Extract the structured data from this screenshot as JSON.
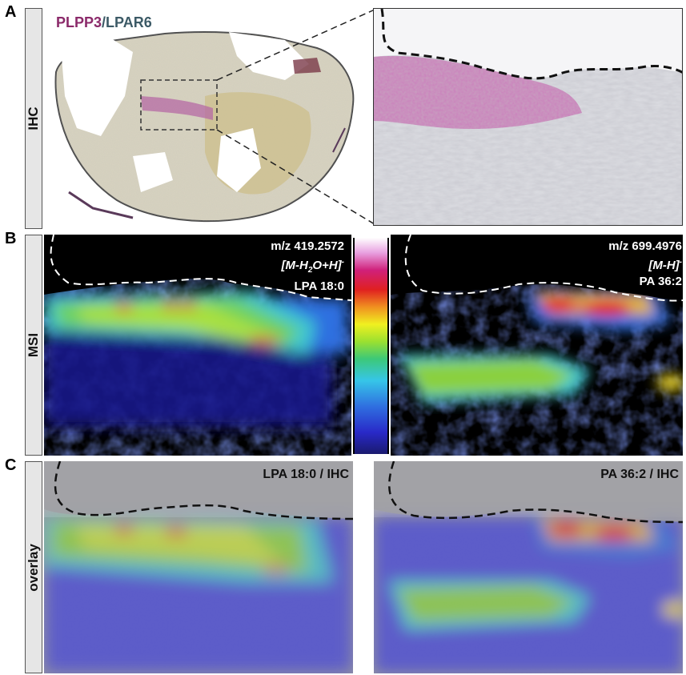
{
  "panels": {
    "a": {
      "letter": "A",
      "side_label": "IHC",
      "stain_plpp3": "PLPP3",
      "stain_slash": "/",
      "stain_lpar6": "LPAR6"
    },
    "b": {
      "letter": "B",
      "side_label": "MSI",
      "left": {
        "mz": "m/z 419.2572",
        "ion_pre": "[M-H",
        "ion_sub": "2",
        "ion_post": "O+H]",
        "ion_sup": "-",
        "lipid": "LPA 18:0"
      },
      "right": {
        "mz": "m/z 699.4976",
        "ion_pre": "[M-H]",
        "ion_sup": "-",
        "lipid": "PA 36:2"
      }
    },
    "c": {
      "letter": "C",
      "side_label": "overlay",
      "left_title": "LPA 18:0 / IHC",
      "right_title": "PA 36:2 / IHC"
    }
  },
  "colors": {
    "plpp3": "#8b2a6a",
    "lpar6": "#3c5a66",
    "msi_bg": "#000000"
  }
}
